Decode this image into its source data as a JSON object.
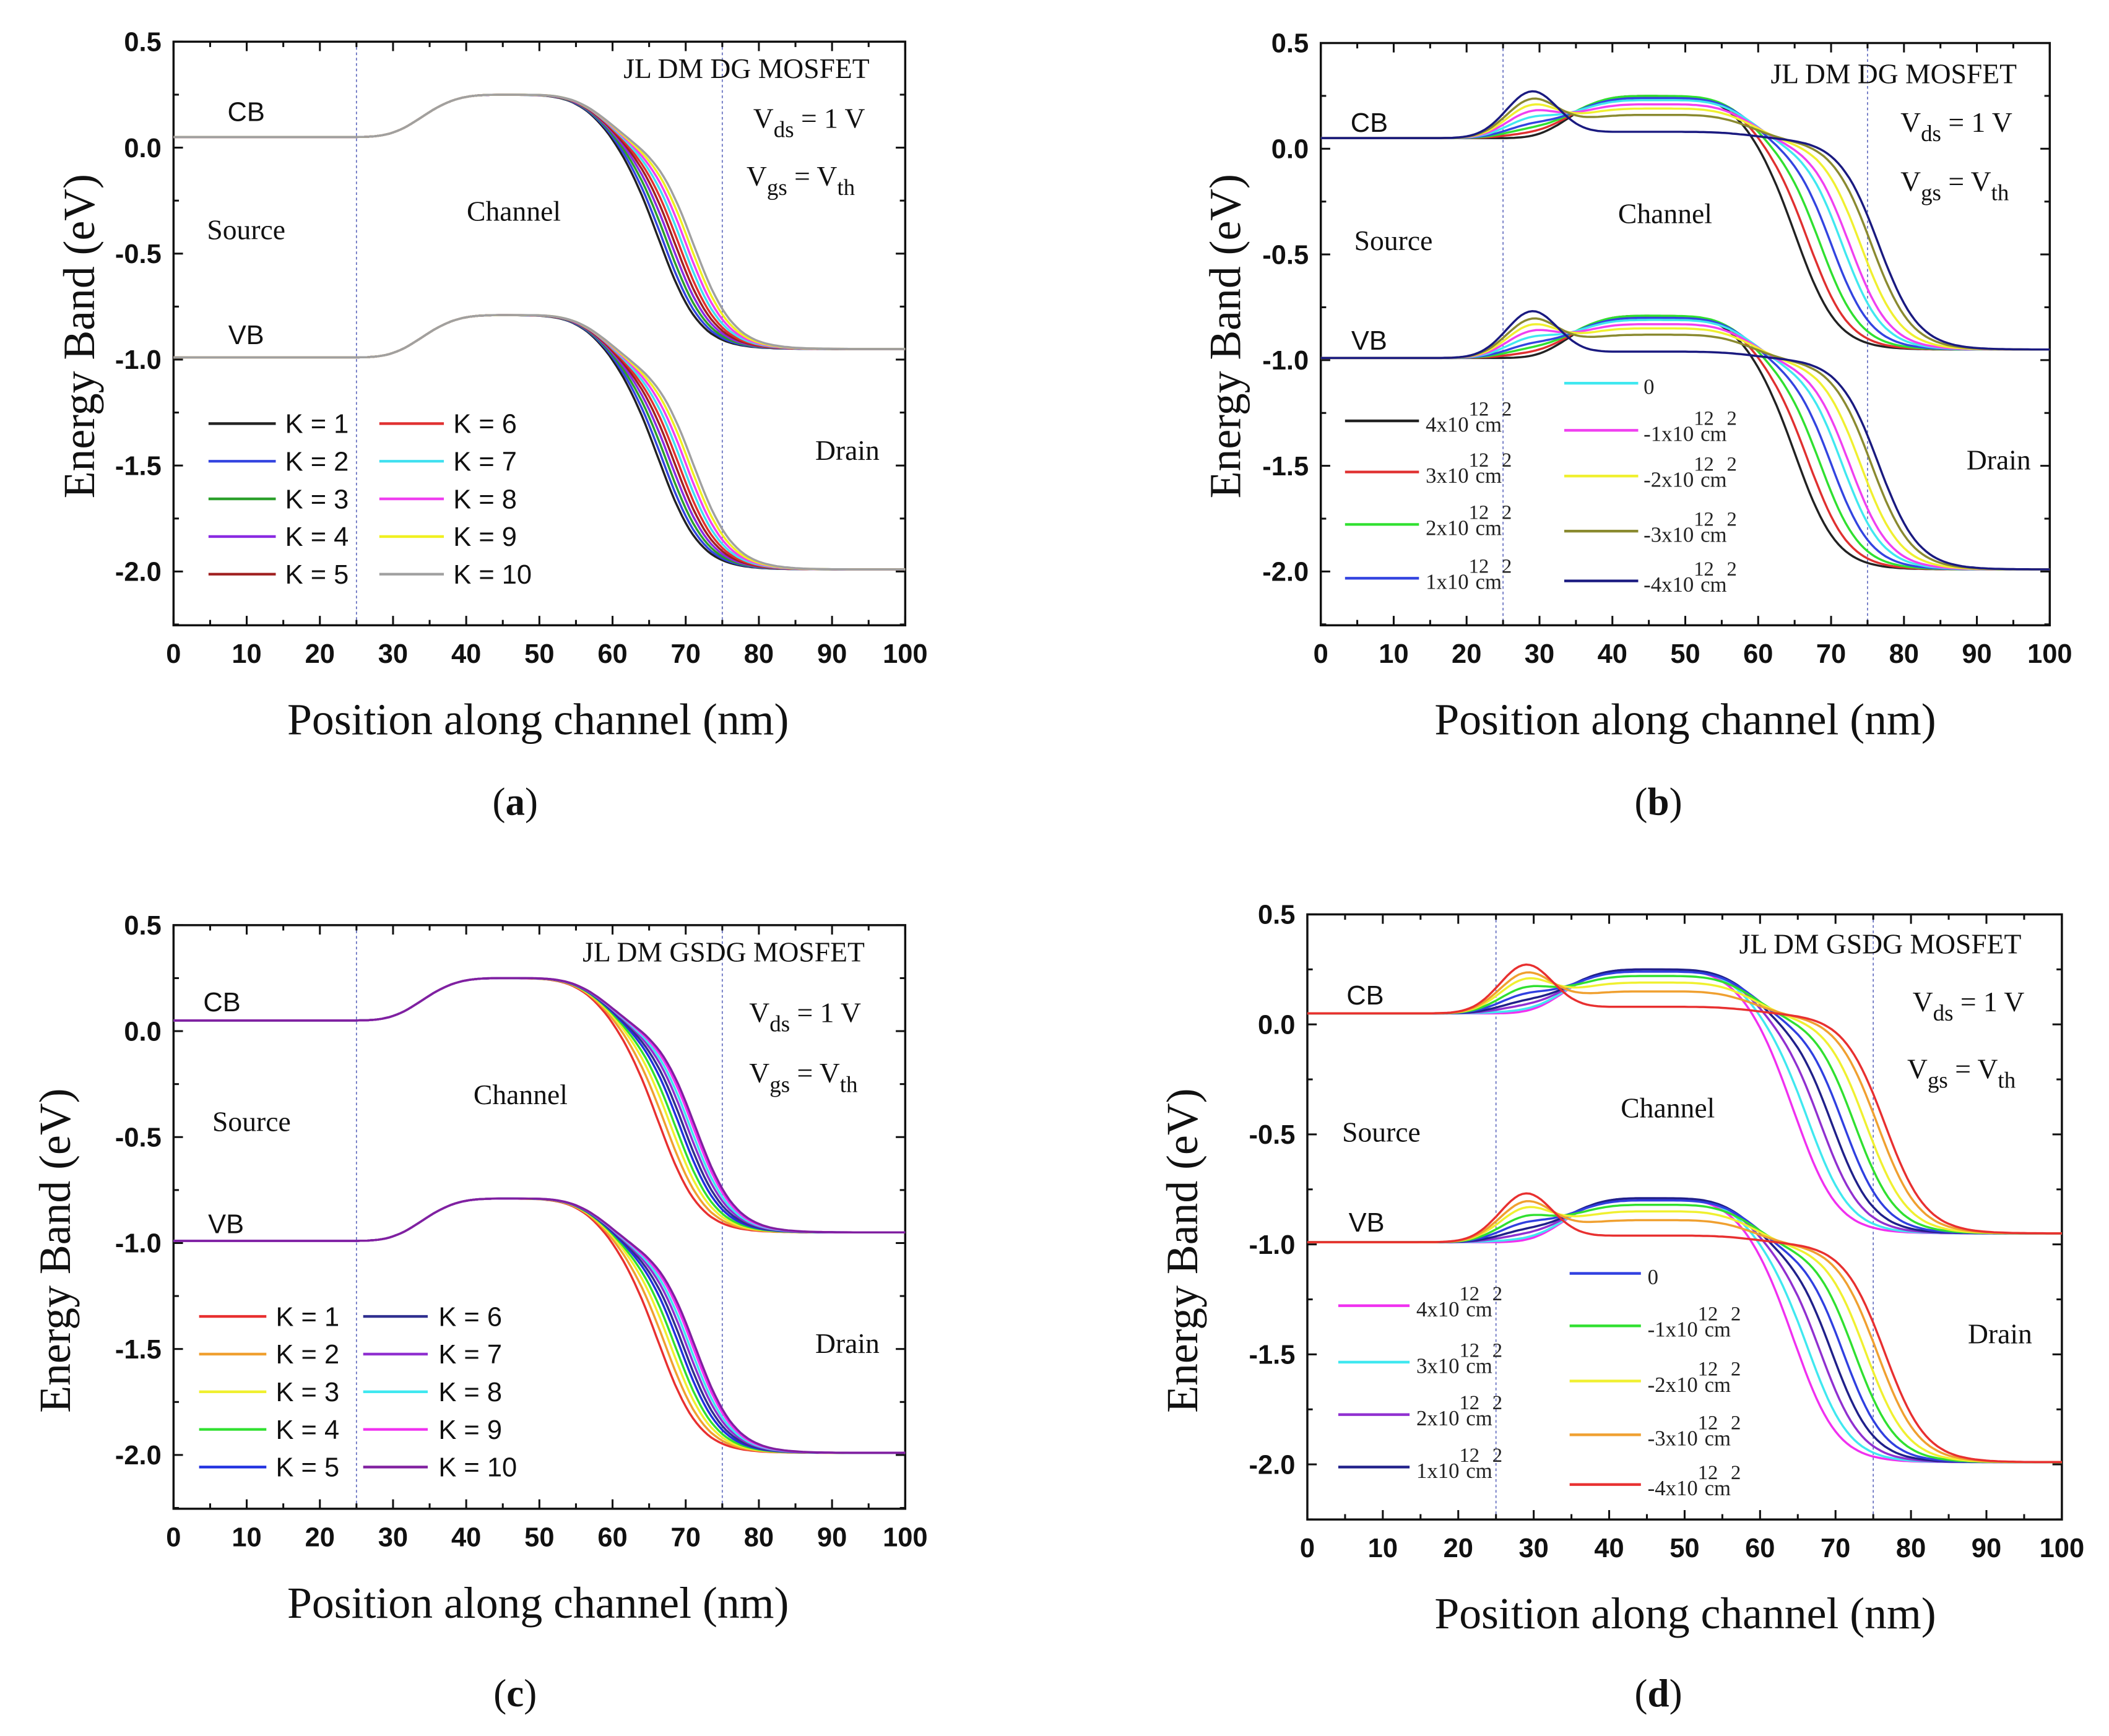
{
  "chart_data": [
    {
      "type": "line",
      "caption_letter": "a",
      "title": "JL DM DG MOSFET",
      "vds": {
        "v": "V",
        "sub": "ds",
        "rest": " = 1 V"
      },
      "vgs": {
        "v": "V",
        "sub": "gs",
        "rest": " = V",
        "sub2": "th"
      },
      "xlabel": "Position along channel (nm)",
      "ylabel": "Energy Band (eV)",
      "xlim": [
        0,
        100
      ],
      "ylim": [
        -2.25,
        0.5
      ],
      "xticks": [
        "0",
        "10",
        "20",
        "30",
        "40",
        "50",
        "60",
        "70",
        "80",
        "90",
        "100"
      ],
      "yticks": [
        "0.5",
        "0.0",
        "-0.5",
        "-1.0",
        "-1.5",
        "-2.0"
      ],
      "region_boundaries_nm": [
        25,
        75
      ],
      "labels": {
        "cb": "CB",
        "vb": "VB",
        "source": "Source",
        "channel": "Channel",
        "drain": "Drain"
      },
      "band_gap_eV": 1.04,
      "legend_split": 5,
      "series": [
        {
          "name": "K = 1",
          "color": "#222222",
          "hs": 0,
          "hm": 0.2,
          "xd": 66.5
        },
        {
          "name": "K = 2",
          "color": "#3344e0",
          "hs": 0,
          "hm": 0.2,
          "xd": 67
        },
        {
          "name": "K = 3",
          "color": "#2ca02c",
          "hs": 0,
          "hm": 0.2,
          "xd": 67.5
        },
        {
          "name": "K = 4",
          "color": "#8a2be2",
          "hs": 0,
          "hm": 0.2,
          "xd": 68
        },
        {
          "name": "K = 5",
          "color": "#a02020",
          "hs": 0,
          "hm": 0.2,
          "xd": 68.5
        },
        {
          "name": "K = 6",
          "color": "#e03030",
          "hs": 0,
          "hm": 0.2,
          "xd": 69
        },
        {
          "name": "K = 7",
          "color": "#40e0f0",
          "hs": 0,
          "hm": 0.2,
          "xd": 69.5
        },
        {
          "name": "K = 8",
          "color": "#f040f0",
          "hs": 0,
          "hm": 0.2,
          "xd": 70
        },
        {
          "name": "K = 9",
          "color": "#f0f020",
          "hs": 0,
          "hm": 0.2,
          "xd": 70.5
        },
        {
          "name": "K = 10",
          "color": "#a0a0a0",
          "hs": 0,
          "hm": 0.2,
          "xd": 71
        }
      ]
    },
    {
      "type": "line",
      "caption_letter": "b",
      "title": "JL DM DG MOSFET",
      "vds": {
        "v": "V",
        "sub": "ds",
        "rest": " = 1 V"
      },
      "vgs": {
        "v": "V",
        "sub": "gs",
        "rest": " = V",
        "sub2": "th"
      },
      "xlabel": "Position along channel (nm)",
      "ylabel": "Energy Band (eV)",
      "xlim": [
        0,
        100
      ],
      "ylim": [
        -2.25,
        0.5
      ],
      "xticks": [
        "0",
        "10",
        "20",
        "30",
        "40",
        "50",
        "60",
        "70",
        "80",
        "90",
        "100"
      ],
      "yticks": [
        "0.5",
        "0.0",
        "-0.5",
        "-1.0",
        "-1.5",
        "-2.0"
      ],
      "region_boundaries_nm": [
        25,
        75
      ],
      "labels": {
        "cb": "CB",
        "vb": "VB",
        "source": "Source",
        "channel": "Channel",
        "drain": "Drain"
      },
      "band_gap_eV": 1.04,
      "legend_split": 4,
      "series": [
        {
          "name": {
            "base": "4x10",
            "sup": "12",
            "unit": "cm",
            "unit_sup": "2"
          },
          "color": "#222222",
          "hs": 0,
          "hm": 0.2,
          "xd": 65.5
        },
        {
          "name": {
            "base": "3x10",
            "sup": "12",
            "unit": "cm",
            "unit_sup": "2"
          },
          "color": "#e03030",
          "hs": 0.02,
          "hm": 0.2,
          "xd": 67
        },
        {
          "name": {
            "base": "2x10",
            "sup": "12",
            "unit": "cm",
            "unit_sup": "2"
          },
          "color": "#30e030",
          "hs": 0.04,
          "hm": 0.2,
          "xd": 68.5
        },
        {
          "name": {
            "base": "1x10",
            "sup": "12",
            "unit": "cm",
            "unit_sup": "2"
          },
          "color": "#3344e0",
          "hs": 0.06,
          "hm": 0.19,
          "xd": 70
        },
        {
          "name": {
            "base": "0",
            "sup": "",
            "unit": "",
            "unit_sup": ""
          },
          "color": "#40e8f0",
          "hs": 0.09,
          "hm": 0.18,
          "xd": 71.5
        },
        {
          "name": {
            "base": "-1x10",
            "sup": "12",
            "unit": "cm",
            "unit_sup": "2"
          },
          "color": "#f040f0",
          "hs": 0.12,
          "hm": 0.16,
          "xd": 72.5
        },
        {
          "name": {
            "base": "-2x10",
            "sup": "12",
            "unit": "cm",
            "unit_sup": "2"
          },
          "color": "#f0f030",
          "hs": 0.15,
          "hm": 0.14,
          "xd": 74
        },
        {
          "name": {
            "base": "-3x10",
            "sup": "12",
            "unit": "cm",
            "unit_sup": "2"
          },
          "color": "#8a8a30",
          "hs": 0.18,
          "hm": 0.11,
          "xd": 75.5
        },
        {
          "name": {
            "base": "-4x10",
            "sup": "12",
            "unit": "cm",
            "unit_sup": "2"
          },
          "color": "#1a1a80",
          "hs": 0.22,
          "hm": 0.03,
          "xd": 76.5
        }
      ]
    },
    {
      "type": "line",
      "caption_letter": "c",
      "title": "JL DM GSDG MOSFET",
      "vds": {
        "v": "V",
        "sub": "ds",
        "rest": " = 1 V"
      },
      "vgs": {
        "v": "V",
        "sub": "gs",
        "rest": " = V",
        "sub2": "th"
      },
      "xlabel": "Position along channel (nm)",
      "ylabel": "Energy Band (eV)",
      "xlim": [
        0,
        100
      ],
      "ylim": [
        -2.25,
        0.5
      ],
      "xticks": [
        "0",
        "10",
        "20",
        "30",
        "40",
        "50",
        "60",
        "70",
        "80",
        "90",
        "100"
      ],
      "yticks": [
        "0.5",
        "0.0",
        "-0.5",
        "-1.0",
        "-1.5",
        "-2.0"
      ],
      "region_boundaries_nm": [
        25,
        75
      ],
      "labels": {
        "cb": "CB",
        "vb": "VB",
        "source": "Source",
        "channel": "Channel",
        "drain": "Drain"
      },
      "band_gap_eV": 1.04,
      "legend_split": 5,
      "series": [
        {
          "name": "K = 1",
          "color": "#e83030",
          "hs": 0,
          "hm": 0.2,
          "xd": 66.5
        },
        {
          "name": "K = 2",
          "color": "#f0a030",
          "hs": 0,
          "hm": 0.2,
          "xd": 67.3
        },
        {
          "name": "K = 3",
          "color": "#f0f030",
          "hs": 0,
          "hm": 0.2,
          "xd": 68
        },
        {
          "name": "K = 4",
          "color": "#30e030",
          "hs": 0,
          "hm": 0.2,
          "xd": 68.6
        },
        {
          "name": "K = 5",
          "color": "#2030e0",
          "hs": 0,
          "hm": 0.2,
          "xd": 69.2
        },
        {
          "name": "K = 6",
          "color": "#303090",
          "hs": 0,
          "hm": 0.2,
          "xd": 69.7
        },
        {
          "name": "K = 7",
          "color": "#9030d0",
          "hs": 0,
          "hm": 0.2,
          "xd": 70.2
        },
        {
          "name": "K = 8",
          "color": "#40e8f0",
          "hs": 0,
          "hm": 0.2,
          "xd": 70.6
        },
        {
          "name": "K = 9",
          "color": "#f030f0",
          "hs": 0,
          "hm": 0.2,
          "xd": 71
        },
        {
          "name": "K = 10",
          "color": "#8020a0",
          "hs": 0,
          "hm": 0.2,
          "xd": 71.3
        }
      ]
    },
    {
      "type": "line",
      "caption_letter": "d",
      "title": "JL DM GSDG MOSFET",
      "vds": {
        "v": "V",
        "sub": "ds",
        "rest": " = 1 V"
      },
      "vgs": {
        "v": "V",
        "sub": "gs",
        "rest": " = V",
        "sub2": "th"
      },
      "xlabel": "Position along channel (nm)",
      "ylabel": "Energy Band (eV)",
      "xlim": [
        0,
        100
      ],
      "ylim": [
        -2.25,
        0.5
      ],
      "xticks": [
        "0",
        "10",
        "20",
        "30",
        "40",
        "50",
        "60",
        "70",
        "80",
        "90",
        "100"
      ],
      "yticks": [
        "0.5",
        "0.0",
        "-0.5",
        "-1.0",
        "-1.5",
        "-2.0"
      ],
      "region_boundaries_nm": [
        25,
        75
      ],
      "labels": {
        "cb": "CB",
        "vb": "VB",
        "source": "Source",
        "channel": "Channel",
        "drain": "Drain"
      },
      "band_gap_eV": 1.04,
      "legend_split": 4,
      "series": [
        {
          "name": {
            "base": "4x10",
            "sup": "12",
            "unit": "cm",
            "unit_sup": "2"
          },
          "color": "#f030f0",
          "hs": 0,
          "hm": 0.2,
          "xd": 65
        },
        {
          "name": {
            "base": "3x10",
            "sup": "12",
            "unit": "cm",
            "unit_sup": "2"
          },
          "color": "#40e8f0",
          "hs": 0.01,
          "hm": 0.2,
          "xd": 66.5
        },
        {
          "name": {
            "base": "2x10",
            "sup": "12",
            "unit": "cm",
            "unit_sup": "2"
          },
          "color": "#9030d0",
          "hs": 0.03,
          "hm": 0.2,
          "xd": 68
        },
        {
          "name": {
            "base": "1x10",
            "sup": "12",
            "unit": "cm",
            "unit_sup": "2"
          },
          "color": "#20208a",
          "hs": 0.05,
          "hm": 0.2,
          "xd": 69.5
        },
        {
          "name": {
            "base": "0",
            "sup": "",
            "unit": "",
            "unit_sup": ""
          },
          "color": "#3040e0",
          "hs": 0.08,
          "hm": 0.19,
          "xd": 71
        },
        {
          "name": {
            "base": "-1x10",
            "sup": "12",
            "unit": "cm",
            "unit_sup": "2"
          },
          "color": "#30e030",
          "hs": 0.11,
          "hm": 0.17,
          "xd": 72.5
        },
        {
          "name": {
            "base": "-2x10",
            "sup": "12",
            "unit": "cm",
            "unit_sup": "2"
          },
          "color": "#f0f030",
          "hs": 0.15,
          "hm": 0.14,
          "xd": 74
        },
        {
          "name": {
            "base": "-3x10",
            "sup": "12",
            "unit": "cm",
            "unit_sup": "2"
          },
          "color": "#f0a030",
          "hs": 0.18,
          "hm": 0.1,
          "xd": 75.5
        },
        {
          "name": {
            "base": "-4x10",
            "sup": "12",
            "unit": "cm",
            "unit_sup": "2"
          },
          "color": "#e83030",
          "hs": 0.22,
          "hm": 0.03,
          "xd": 76.5
        }
      ]
    }
  ]
}
